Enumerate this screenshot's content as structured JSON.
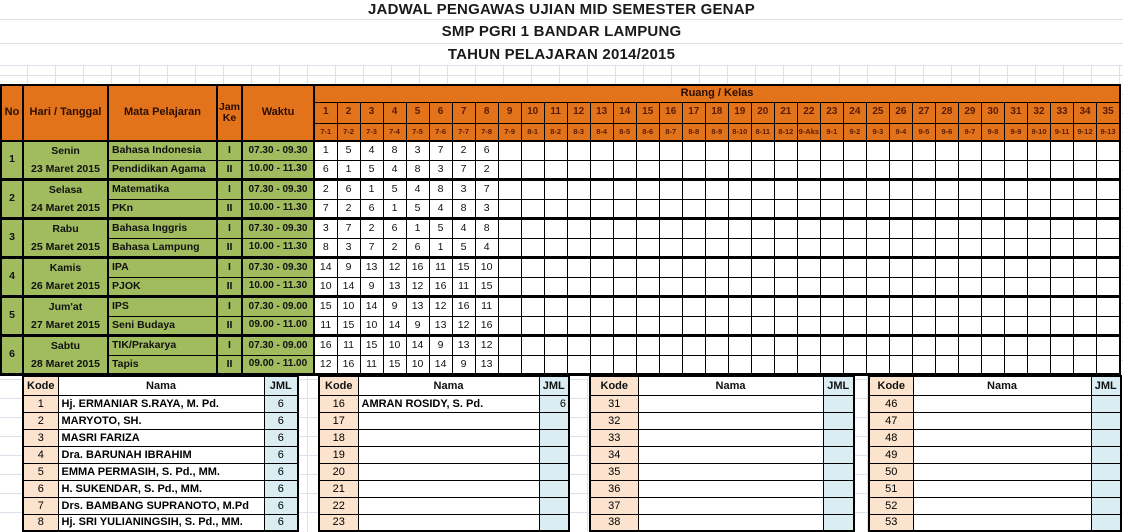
{
  "titles": {
    "line1": "JADWAL PENGAWAS UJIAN MID SEMESTER GENAP",
    "line2": "SMP PGRI 1 BANDAR LAMPUNG",
    "line3": "TAHUN PELAJARAN 2014/2015"
  },
  "colors": {
    "header_fill": "#E2731A",
    "header_text": "#2B0E00",
    "subheader_text": "#5A1A00",
    "green_fill": "#A0BC5E",
    "kode_fill": "#FBE3CE",
    "jml_fill": "#DAEDF3",
    "gridline": "#DCE2EB",
    "border": "#000000"
  },
  "main_table": {
    "col_headers": {
      "no": "No",
      "day_date": "Hari / Tanggal",
      "subject": "Mata Pelajaran",
      "jam_ke": "Jam Ke",
      "waktu": "Waktu",
      "ruang_kelas": "Ruang / Kelas"
    },
    "room_numbers": [
      "1",
      "2",
      "3",
      "4",
      "5",
      "6",
      "7",
      "8",
      "9",
      "10",
      "11",
      "12",
      "13",
      "14",
      "15",
      "16",
      "17",
      "18",
      "19",
      "20",
      "21",
      "22",
      "23",
      "24",
      "25",
      "26",
      "27",
      "28",
      "29",
      "30",
      "31",
      "32",
      "33",
      "34",
      "35"
    ],
    "room_classes": [
      "7-1",
      "7-2",
      "7-3",
      "7-4",
      "7-5",
      "7-6",
      "7-7",
      "7-8",
      "7-9",
      "8-1",
      "8-2",
      "8-3",
      "8-4",
      "8-5",
      "8-6",
      "8-7",
      "8-8",
      "8-9",
      "8-10",
      "8-11",
      "8-12",
      "9-Aks",
      "9-1",
      "9-2",
      "9-3",
      "9-4",
      "9-5",
      "9-6",
      "9-7",
      "9-8",
      "9-9",
      "9-10",
      "9-11",
      "9-12",
      "9-13"
    ],
    "days": [
      {
        "no": "1",
        "day": "Senin",
        "date": "23 Maret 2015",
        "sessions": [
          {
            "subject": "Bahasa Indonesia",
            "jam": "I",
            "waktu": "07.30 - 09.30",
            "codes": [
              "1",
              "5",
              "4",
              "8",
              "3",
              "7",
              "2",
              "6"
            ]
          },
          {
            "subject": "Pendidikan Agama",
            "jam": "II",
            "waktu": "10.00 - 11.30",
            "codes": [
              "6",
              "1",
              "5",
              "4",
              "8",
              "3",
              "7",
              "2"
            ]
          }
        ]
      },
      {
        "no": "2",
        "day": "Selasa",
        "date": "24 Maret 2015",
        "sessions": [
          {
            "subject": "Matematika",
            "jam": "I",
            "waktu": "07.30 - 09.30",
            "codes": [
              "2",
              "6",
              "1",
              "5",
              "4",
              "8",
              "3",
              "7"
            ]
          },
          {
            "subject": "PKn",
            "jam": "II",
            "waktu": "10.00 - 11.30",
            "codes": [
              "7",
              "2",
              "6",
              "1",
              "5",
              "4",
              "8",
              "3"
            ]
          }
        ]
      },
      {
        "no": "3",
        "day": "Rabu",
        "date": "25 Maret 2015",
        "sessions": [
          {
            "subject": "Bahasa Inggris",
            "jam": "I",
            "waktu": "07.30 - 09.30",
            "codes": [
              "3",
              "7",
              "2",
              "6",
              "1",
              "5",
              "4",
              "8"
            ]
          },
          {
            "subject": "Bahasa Lampung",
            "jam": "II",
            "waktu": "10.00 - 11.30",
            "codes": [
              "8",
              "3",
              "7",
              "2",
              "6",
              "1",
              "5",
              "4"
            ]
          }
        ]
      },
      {
        "no": "4",
        "day": "Kamis",
        "date": "26 Maret 2015",
        "sessions": [
          {
            "subject": "IPA",
            "jam": "I",
            "waktu": "07.30 - 09.30",
            "codes": [
              "14",
              "9",
              "13",
              "12",
              "16",
              "11",
              "15",
              "10"
            ]
          },
          {
            "subject": "PJOK",
            "jam": "II",
            "waktu": "10.00 - 11.30",
            "codes": [
              "10",
              "14",
              "9",
              "13",
              "12",
              "16",
              "11",
              "15"
            ]
          }
        ]
      },
      {
        "no": "5",
        "day": "Jum'at",
        "date": "27 Maret 2015",
        "sessions": [
          {
            "subject": "IPS",
            "jam": "I",
            "waktu": "07.30 - 09.00",
            "codes": [
              "15",
              "10",
              "14",
              "9",
              "13",
              "12",
              "16",
              "11"
            ]
          },
          {
            "subject": "Seni Budaya",
            "jam": "II",
            "waktu": "09.00 - 11.00",
            "codes": [
              "11",
              "15",
              "10",
              "14",
              "9",
              "13",
              "12",
              "16"
            ]
          }
        ]
      },
      {
        "no": "6",
        "day": "Sabtu",
        "date": "28 Maret 2015",
        "sessions": [
          {
            "subject": "TIK/Prakarya",
            "jam": "I",
            "waktu": "07.30 - 09.00",
            "codes": [
              "16",
              "11",
              "15",
              "10",
              "14",
              "9",
              "13",
              "12"
            ]
          },
          {
            "subject": "Tapis",
            "jam": "II",
            "waktu": "09.00 - 11.00",
            "codes": [
              "12",
              "16",
              "11",
              "15",
              "10",
              "14",
              "9",
              "13"
            ]
          }
        ]
      }
    ],
    "total_room_columns": 35
  },
  "code_tables": [
    {
      "name": "pengawas-table-1",
      "headers": {
        "kode": "Kode",
        "nama": "Nama",
        "jml": "JML"
      },
      "rows": [
        {
          "kode": "1",
          "nama": "Hj. ERMANIAR S.RAYA, M. Pd.",
          "jml": "6"
        },
        {
          "kode": "2",
          "nama": "MARYOTO, SH.",
          "jml": "6"
        },
        {
          "kode": "3",
          "nama": "MASRI FARIZA",
          "jml": "6"
        },
        {
          "kode": "4",
          "nama": "Dra. BARUNAH IBRAHIM",
          "jml": "6"
        },
        {
          "kode": "5",
          "nama": "EMMA PERMASIH, S. Pd., MM.",
          "jml": "6"
        },
        {
          "kode": "6",
          "nama": "H. SUKENDAR, S. Pd., MM.",
          "jml": "6"
        },
        {
          "kode": "7",
          "nama": "Drs. BAMBANG SUPRANOTO, M.Pd",
          "jml": "6"
        },
        {
          "kode": "8",
          "nama": "Hj. SRI YULIANINGSIH, S. Pd., MM.",
          "jml": "6",
          "partially_visible": true
        }
      ]
    },
    {
      "name": "pengawas-table-2",
      "jml_align": "right",
      "headers": {
        "kode": "Kode",
        "nama": "Nama",
        "jml": "JML"
      },
      "rows": [
        {
          "kode": "16",
          "nama": "AMRAN ROSIDY, S. Pd.",
          "jml": "6"
        },
        {
          "kode": "17",
          "nama": "",
          "jml": ""
        },
        {
          "kode": "18",
          "nama": "",
          "jml": ""
        },
        {
          "kode": "19",
          "nama": "",
          "jml": ""
        },
        {
          "kode": "20",
          "nama": "",
          "jml": ""
        },
        {
          "kode": "21",
          "nama": "",
          "jml": ""
        },
        {
          "kode": "22",
          "nama": "",
          "jml": ""
        },
        {
          "kode": "23",
          "nama": "",
          "jml": "",
          "partially_visible": true
        }
      ]
    },
    {
      "name": "pengawas-table-3",
      "headers": {
        "kode": "Kode",
        "nama": "Nama",
        "jml": "JML"
      },
      "rows": [
        {
          "kode": "31",
          "nama": "",
          "jml": ""
        },
        {
          "kode": "32",
          "nama": "",
          "jml": ""
        },
        {
          "kode": "33",
          "nama": "",
          "jml": ""
        },
        {
          "kode": "34",
          "nama": "",
          "jml": ""
        },
        {
          "kode": "35",
          "nama": "",
          "jml": ""
        },
        {
          "kode": "36",
          "nama": "",
          "jml": ""
        },
        {
          "kode": "37",
          "nama": "",
          "jml": ""
        },
        {
          "kode": "38",
          "nama": "",
          "jml": "",
          "partially_visible": true
        }
      ]
    },
    {
      "name": "pengawas-table-4",
      "headers": {
        "kode": "Kode",
        "nama": "Nama",
        "jml": "JML"
      },
      "rows": [
        {
          "kode": "46",
          "nama": "",
          "jml": ""
        },
        {
          "kode": "47",
          "nama": "",
          "jml": ""
        },
        {
          "kode": "48",
          "nama": "",
          "jml": ""
        },
        {
          "kode": "49",
          "nama": "",
          "jml": ""
        },
        {
          "kode": "50",
          "nama": "",
          "jml": ""
        },
        {
          "kode": "51",
          "nama": "",
          "jml": ""
        },
        {
          "kode": "52",
          "nama": "",
          "jml": ""
        },
        {
          "kode": "53",
          "nama": "",
          "jml": "",
          "partially_visible": true
        }
      ]
    }
  ]
}
